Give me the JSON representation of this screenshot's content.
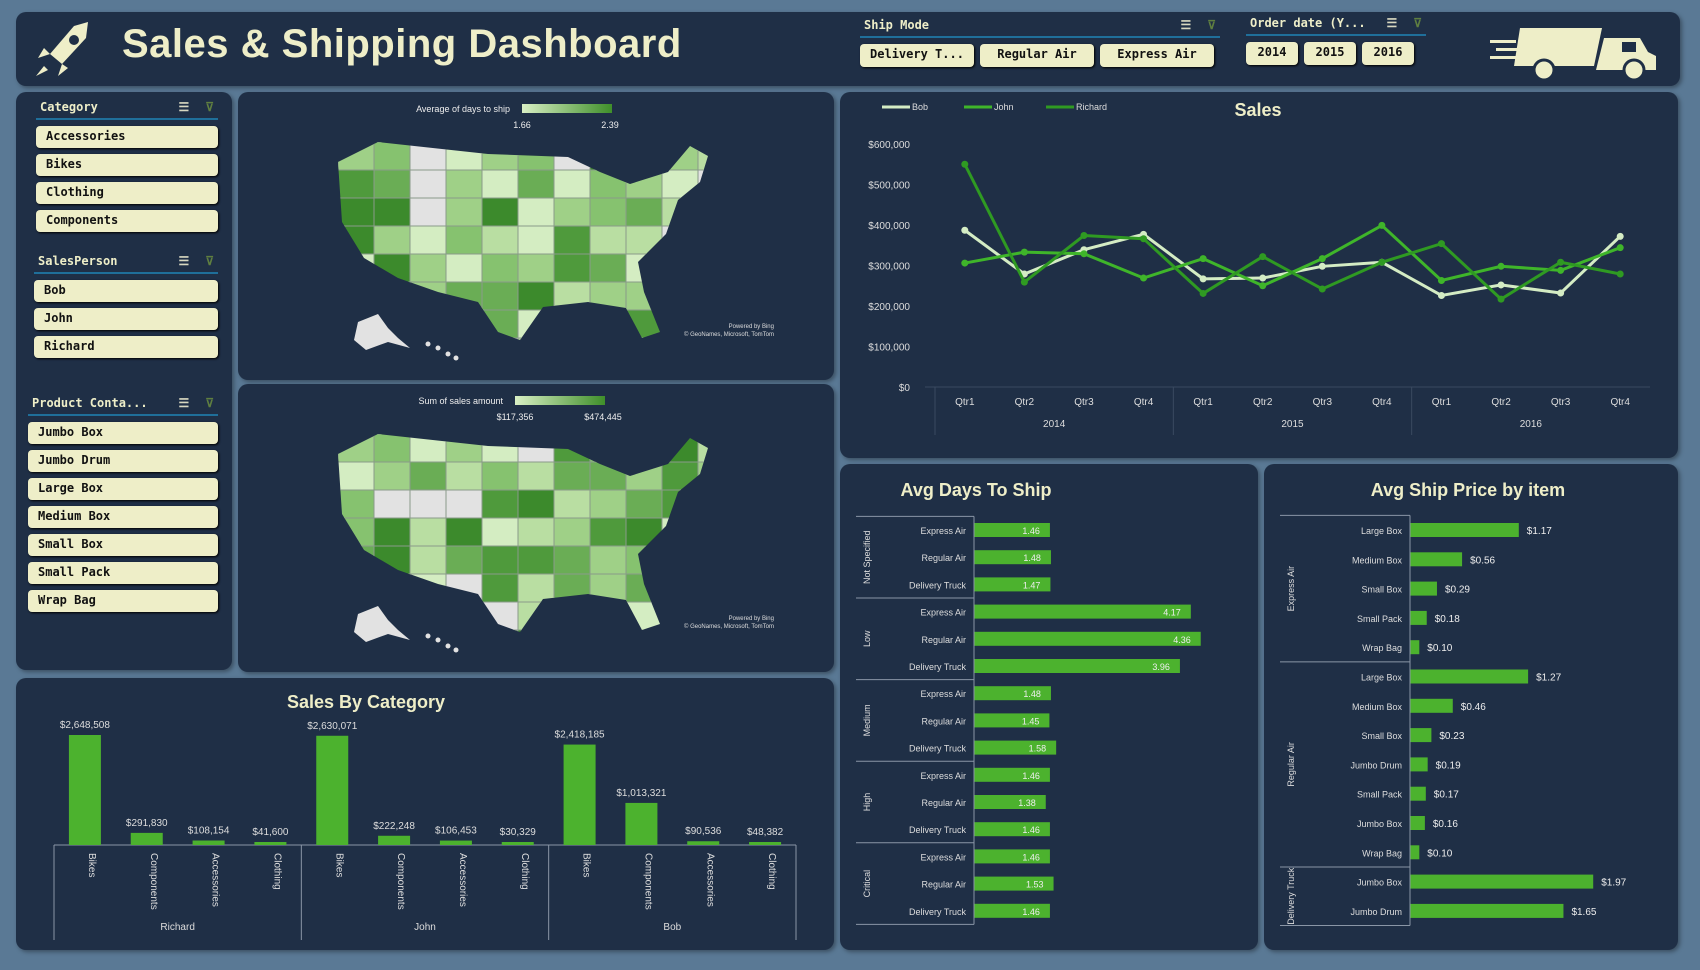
{
  "header": {
    "title": "Sales & Shipping Dashboard",
    "logo_icon": "rocket-icon",
    "truck_icon": "truck-icon"
  },
  "ship_mode": {
    "label": "Ship Mode",
    "options": [
      "Delivery T...",
      "Regular Air",
      "Express Air"
    ]
  },
  "order_date": {
    "label": "Order date (Y...",
    "options": [
      "2014",
      "2015",
      "2016"
    ]
  },
  "category": {
    "label": "Category",
    "options": [
      "Accessories",
      "Bikes",
      "Clothing",
      "Components"
    ]
  },
  "sales_person": {
    "label": "SalesPerson",
    "options": [
      "Bob",
      "John",
      "Richard"
    ]
  },
  "product_container": {
    "label": "Product Conta...",
    "options": [
      "Jumbo Box",
      "Jumbo Drum",
      "Large Box",
      "Medium Box",
      "Small Box",
      "Small Pack",
      "Wrap Bag"
    ]
  },
  "map_days": {
    "legend_title": "Average of days to ship",
    "min": "1.66",
    "max": "2.39",
    "attribution1": "Powered by Bing",
    "attribution2": "© GeoNames, Microsoft, TomTom"
  },
  "map_sales": {
    "legend_title": "Sum of sales amount",
    "min": "$117,356",
    "max": "$474,445",
    "attribution1": "Powered by Bing",
    "attribution2": "© GeoNames, Microsoft, TomTom"
  },
  "colors": {
    "bob": "#d4ecc4",
    "john": "#3fb52a",
    "richard": "#2f9a22",
    "bar": "#4cb22e",
    "panel": "#1f2f46",
    "cream": "#eeeec8"
  },
  "chart_data": [
    {
      "id": "sales",
      "type": "line",
      "title": "Sales",
      "ylim": [
        0,
        600000
      ],
      "yticks": [
        "$0",
        "$100,000",
        "$200,000",
        "$300,000",
        "$400,000",
        "$500,000",
        "$600,000"
      ],
      "categories": [
        "Qtr1",
        "Qtr2",
        "Qtr3",
        "Qtr4",
        "Qtr1",
        "Qtr2",
        "Qtr3",
        "Qtr4",
        "Qtr1",
        "Qtr2",
        "Qtr3",
        "Qtr4"
      ],
      "groups": [
        "2014",
        "2015",
        "2016"
      ],
      "legend": "top-left",
      "series": [
        {
          "name": "Bob",
          "values": [
            387000,
            279000,
            339000,
            377000,
            267000,
            269000,
            298000,
            308000,
            226000,
            252000,
            232000,
            372000
          ]
        },
        {
          "name": "John",
          "values": [
            306000,
            333000,
            329000,
            269000,
            317000,
            250000,
            317000,
            399000,
            263000,
            298000,
            288000,
            344000
          ]
        },
        {
          "name": "Richard",
          "values": [
            550000,
            259000,
            374000,
            366000,
            231000,
            322000,
            242000,
            308000,
            354000,
            217000,
            308000,
            279000
          ]
        }
      ]
    },
    {
      "id": "category",
      "type": "bar",
      "title": "Sales By Category",
      "groups": [
        {
          "name": "Richard",
          "categories": [
            "Bikes",
            "Components",
            "Accessories",
            "Clothing"
          ],
          "values": [
            2648508,
            291830,
            108154,
            41600
          ],
          "labels": [
            "$2,648,508",
            "$291,830",
            "$108,154",
            "$41,600"
          ]
        },
        {
          "name": "John",
          "categories": [
            "Bikes",
            "Components",
            "Accessories",
            "Clothing"
          ],
          "values": [
            2630071,
            222248,
            106453,
            30329
          ],
          "labels": [
            "$2,630,071",
            "$222,248",
            "$106,453",
            "$30,329"
          ]
        },
        {
          "name": "Bob",
          "categories": [
            "Bikes",
            "Components",
            "Accessories",
            "Clothing"
          ],
          "values": [
            2418185,
            1013321,
            90536,
            48382
          ],
          "labels": [
            "$2,418,185",
            "$1,013,321",
            "$90,536",
            "$48,382"
          ]
        }
      ]
    },
    {
      "id": "days",
      "type": "bar",
      "orientation": "horizontal",
      "title": "Avg Days To Ship",
      "groups": [
        {
          "name": "Not Specified",
          "items": [
            "Express Air",
            "Regular Air",
            "Delivery Truck"
          ],
          "values": [
            1.46,
            1.48,
            1.47
          ]
        },
        {
          "name": "Low",
          "items": [
            "Express Air",
            "Regular Air",
            "Delivery Truck"
          ],
          "values": [
            4.17,
            4.36,
            3.96
          ]
        },
        {
          "name": "Medium",
          "items": [
            "Express Air",
            "Regular Air",
            "Delivery Truck"
          ],
          "values": [
            1.48,
            1.45,
            1.58
          ]
        },
        {
          "name": "High",
          "items": [
            "Express Air",
            "Regular Air",
            "Delivery Truck"
          ],
          "values": [
            1.46,
            1.38,
            1.46
          ]
        },
        {
          "name": "Critical",
          "items": [
            "Express Air",
            "Regular Air",
            "Delivery Truck"
          ],
          "values": [
            1.46,
            1.53,
            1.46
          ]
        }
      ]
    },
    {
      "id": "price",
      "type": "bar",
      "orientation": "horizontal",
      "title": "Avg Ship Price by item",
      "groups": [
        {
          "name": "Express Air",
          "items": [
            "Large Box",
            "Medium Box",
            "Small Box",
            "Small Pack",
            "Wrap Bag"
          ],
          "values": [
            1.17,
            0.56,
            0.29,
            0.18,
            0.1
          ],
          "labels": [
            "$1.17",
            "$0.56",
            "$0.29",
            "$0.18",
            "$0.10"
          ]
        },
        {
          "name": "Regular Air",
          "items": [
            "Large Box",
            "Medium Box",
            "Small Box",
            "Jumbo Drum",
            "Small Pack",
            "Jumbo Box",
            "Wrap Bag"
          ],
          "values": [
            1.27,
            0.46,
            0.23,
            0.19,
            0.17,
            0.16,
            0.1
          ],
          "labels": [
            "$1.27",
            "$0.46",
            "$0.23",
            "$0.19",
            "$0.17",
            "$0.16",
            "$0.10"
          ]
        },
        {
          "name": "Delivery Truck",
          "items": [
            "Jumbo Box",
            "Jumbo Drum"
          ],
          "values": [
            1.97,
            1.65
          ],
          "labels": [
            "$1.97",
            "$1.65"
          ]
        }
      ]
    }
  ]
}
